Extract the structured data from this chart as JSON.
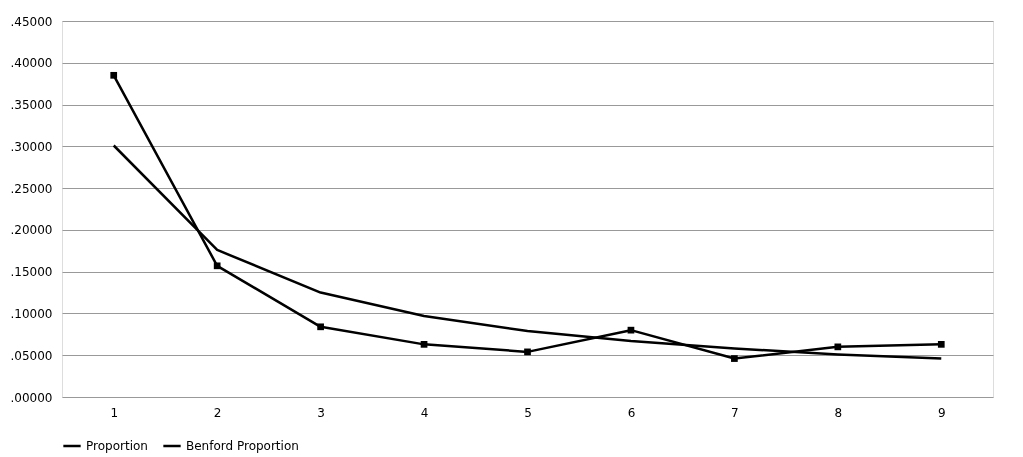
{
  "chart_data": {
    "type": "line",
    "categories": [
      "1",
      "2",
      "3",
      "4",
      "5",
      "6",
      "7",
      "8",
      "9"
    ],
    "series": [
      {
        "name": "Proportion",
        "color": "#000000",
        "marker": "square",
        "values": [
          0.385,
          0.157,
          0.084,
          0.063,
          0.054,
          0.08,
          0.046,
          0.06,
          0.063
        ]
      },
      {
        "name": "Benford Proportion",
        "color": "#000000",
        "marker": "none",
        "values": [
          0.301,
          0.176,
          0.125,
          0.097,
          0.079,
          0.067,
          0.058,
          0.051,
          0.046
        ]
      }
    ],
    "ylim": [
      0,
      0.45
    ],
    "yticks": [
      {
        "value": 0,
        "label": ".00000"
      },
      {
        "value": 0.05,
        "label": ".05000"
      },
      {
        "value": 0.1,
        "label": ".10000"
      },
      {
        "value": 0.15,
        "label": ".15000"
      },
      {
        "value": 0.2,
        "label": ".20000"
      },
      {
        "value": 0.25,
        "label": ".25000"
      },
      {
        "value": 0.3,
        "label": ".30000"
      },
      {
        "value": 0.35,
        "label": ".35000"
      },
      {
        "value": 0.4,
        "label": ".40000"
      },
      {
        "value": 0.45,
        "label": ".45000"
      }
    ],
    "grid": "y",
    "legend": "bottom",
    "line_style": "solid"
  }
}
